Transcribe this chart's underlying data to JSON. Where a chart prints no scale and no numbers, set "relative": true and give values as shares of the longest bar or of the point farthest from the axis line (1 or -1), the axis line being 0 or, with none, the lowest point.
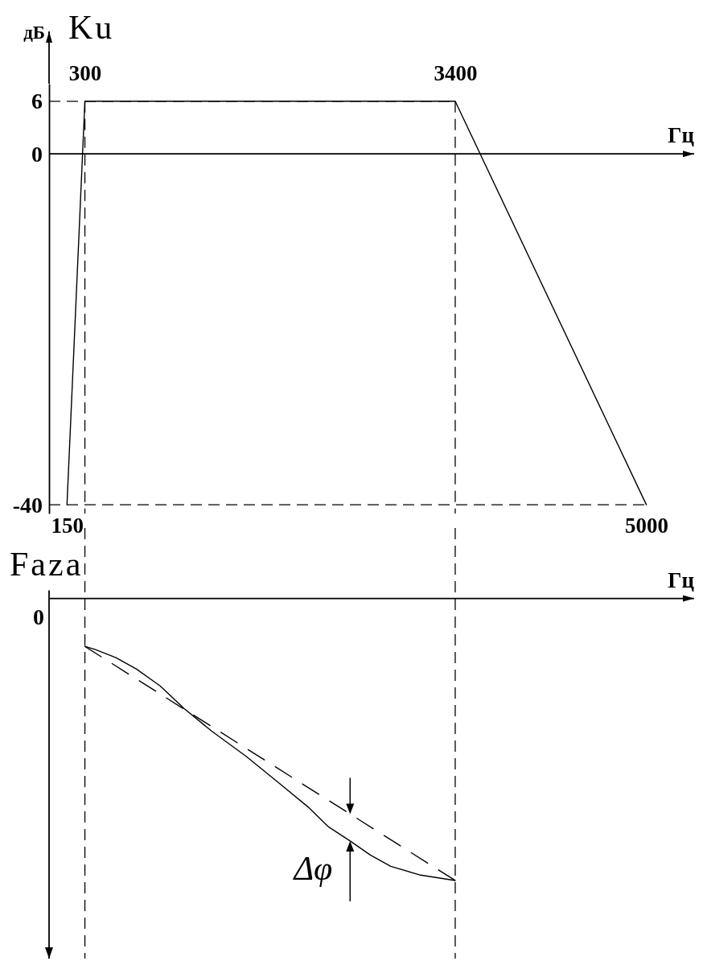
{
  "chart_data": [
    {
      "type": "line",
      "title": "Ku",
      "ylabel": "дБ",
      "xlabel": "Гц",
      "xlim": [
        0,
        5400
      ],
      "xticks": [
        150,
        5000
      ],
      "x2lim": [
        0,
        5400
      ],
      "x2ticks": [
        300,
        3400
      ],
      "ylim": [
        -41,
        8
      ],
      "yticks": [
        -40,
        0,
        6
      ],
      "series": [
        {
          "color": "#000000",
          "x": [
            150,
            300,
            3400,
            5000
          ],
          "values": [
            -40,
            6,
            6,
            -40
          ]
        }
      ],
      "ref_lines": [
        {
          "axis": "x",
          "value": 300,
          "color": "#000000",
          "line_style": "dashed"
        },
        {
          "axis": "x",
          "value": 3400,
          "color": "#000000",
          "line_style": "dashed"
        },
        {
          "axis": "y",
          "value": 6,
          "color": "#000000",
          "line_style": "dashed"
        },
        {
          "axis": "y",
          "value": -40,
          "color": "#000000",
          "line_style": "dashed"
        }
      ]
    },
    {
      "type": "line",
      "title": "Faza",
      "xlabel": "Гц",
      "xlim": [
        0,
        5400
      ],
      "relative": true,
      "tick_labels": false,
      "series": [
        {
          "color": "#000000",
          "x": [
            300,
            380,
            560,
            730,
            930,
            1130,
            1360,
            1650,
            1940,
            2170,
            2340,
            2520,
            2690,
            2860,
            3100,
            3400
          ],
          "values": [
            -0.17,
            -0.18,
            -0.21,
            -0.25,
            -0.31,
            -0.39,
            -0.47,
            -0.56,
            -0.66,
            -0.74,
            -0.81,
            -0.86,
            -0.91,
            -0.95,
            -0.98,
            -1
          ]
        },
        {
          "color": "#000000",
          "line_style": "dashed",
          "x": [
            300,
            3400
          ],
          "values": [
            -0.17,
            -1
          ]
        }
      ],
      "ref_lines": [
        {
          "axis": "x",
          "value": 300,
          "color": "#000000",
          "line_style": "dashed"
        },
        {
          "axis": "x",
          "value": 3400,
          "color": "#000000",
          "line_style": "dashed"
        }
      ],
      "annotations": [
        "0",
        {
          "text": "Δφ",
          "x": 2520,
          "y": -0.86
        }
      ]
    }
  ]
}
